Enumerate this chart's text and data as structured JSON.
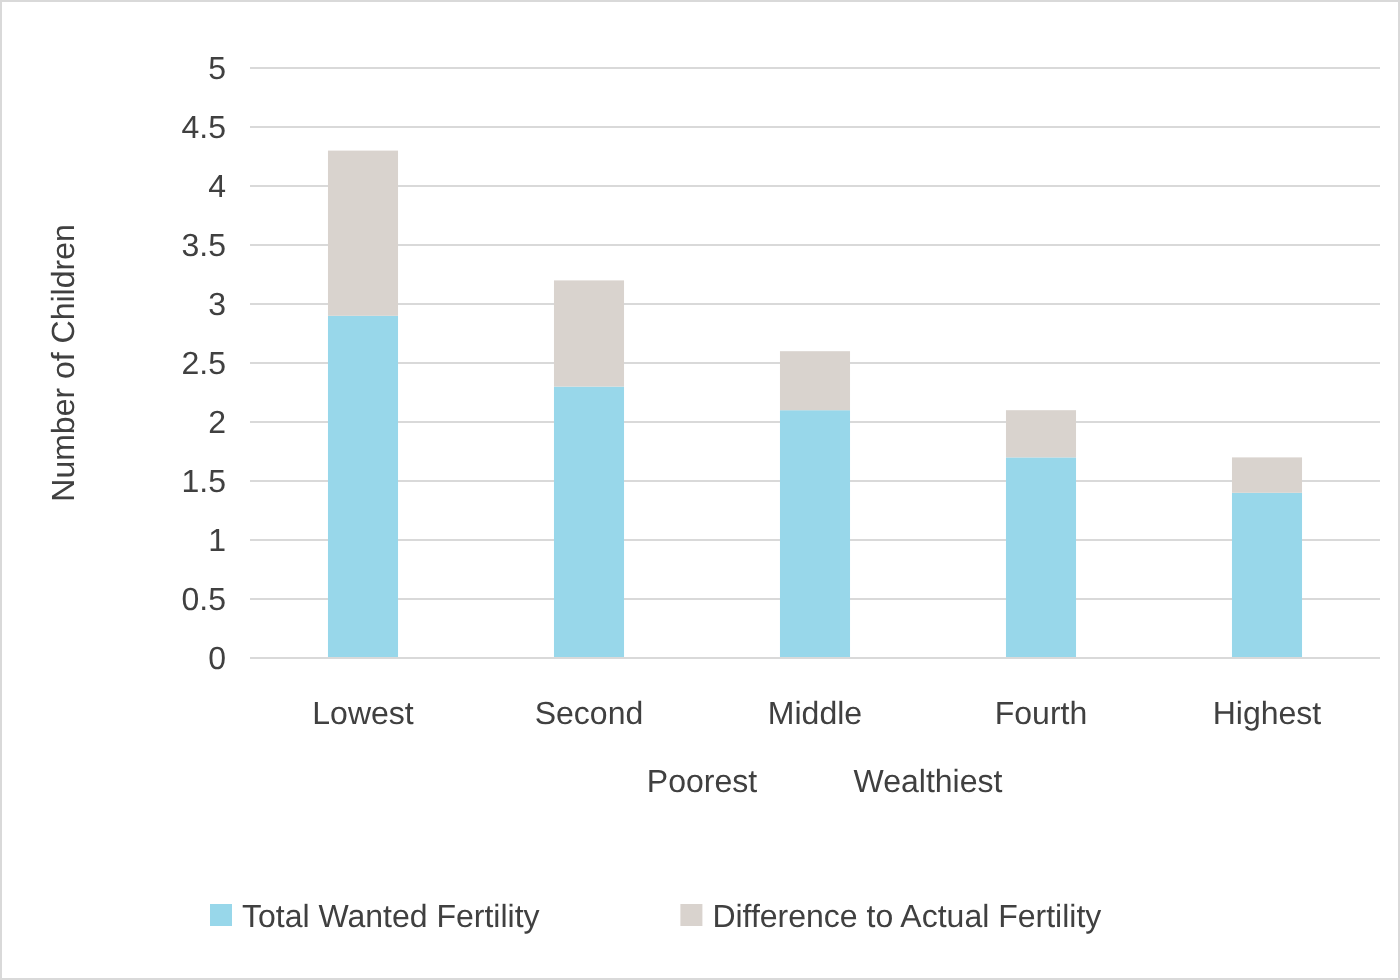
{
  "chart_data": {
    "type": "bar",
    "stacked": true,
    "ylabel": "Number of Children",
    "categories": [
      "Lowest",
      "Second",
      "Middle",
      "Fourth",
      "Highest"
    ],
    "series": [
      {
        "name": "Total Wanted Fertility",
        "color": "#98d7ea",
        "values": [
          2.9,
          2.3,
          2.1,
          1.7,
          1.4
        ]
      },
      {
        "name": "Difference to Actual Fertility",
        "color": "#d9d3ce",
        "values": [
          1.4,
          0.9,
          0.5,
          0.4,
          0.3
        ]
      }
    ],
    "ylim": [
      0,
      5
    ],
    "yticks": [
      0,
      0.5,
      1,
      1.5,
      2,
      2.5,
      3,
      3.5,
      4,
      4.5,
      5
    ],
    "grid": "y",
    "legend": "bottom",
    "annotations": [
      "Poorest",
      "Wealthiest"
    ]
  }
}
